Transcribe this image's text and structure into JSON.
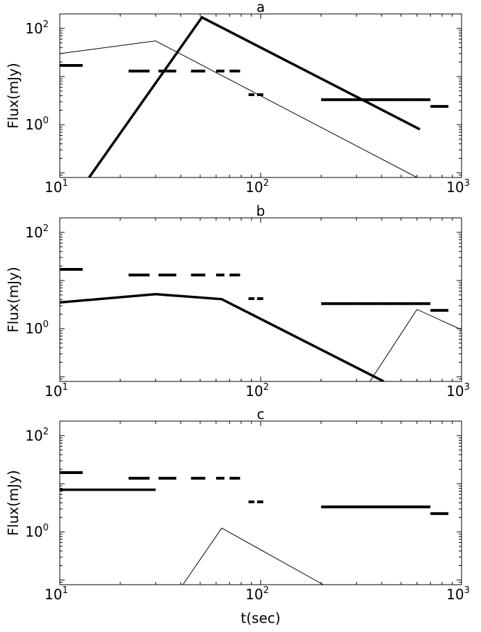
{
  "chart_data": [
    {
      "type": "line",
      "title": "a",
      "xlabel": "",
      "ylabel": "Flux(mJy)",
      "xscale": "log",
      "yscale": "log",
      "xlim": [
        10,
        1000
      ],
      "ylim": [
        0.08,
        200
      ],
      "xticks": [
        {
          "base": "10",
          "exp": "1",
          "value": 10
        },
        {
          "base": "10",
          "exp": "2",
          "value": 100
        },
        {
          "base": "10",
          "exp": "3",
          "value": 1000
        }
      ],
      "yticks": [
        {
          "base": "10",
          "exp": "0",
          "value": 1
        },
        {
          "base": "10",
          "exp": "2",
          "value": 100
        }
      ],
      "grid": false,
      "observations": [
        {
          "x": [
            10,
            13
          ],
          "y": 17
        },
        {
          "x": [
            22,
            28
          ],
          "y": 13
        },
        {
          "x": [
            31,
            38
          ],
          "y": 13
        },
        {
          "x": [
            45,
            53
          ],
          "y": 13
        },
        {
          "x": [
            60,
            66
          ],
          "y": 13
        },
        {
          "x": [
            70,
            79
          ],
          "y": 13
        },
        {
          "x": [
            87,
            93
          ],
          "y": 4.2
        },
        {
          "x": [
            96,
            103
          ],
          "y": 4.2
        },
        {
          "x": [
            200,
            300
          ],
          "y": 3.3
        },
        {
          "x": [
            300,
            395
          ],
          "y": 3.3
        },
        {
          "x": [
            395,
            480
          ],
          "y": 3.3
        },
        {
          "x": [
            480,
            580
          ],
          "y": 3.3
        },
        {
          "x": [
            580,
            700
          ],
          "y": 3.3
        },
        {
          "x": [
            700,
            860
          ],
          "y": 2.4
        }
      ],
      "series": [
        {
          "line": "thin",
          "x": [
            10,
            30,
            600
          ],
          "y": [
            30,
            55,
            0.08
          ]
        },
        {
          "line": "thick",
          "x": [
            14,
            51,
            620
          ],
          "y": [
            0.08,
            170,
            0.8
          ]
        }
      ]
    },
    {
      "type": "line",
      "title": "b",
      "xlabel": "",
      "ylabel": "Flux(mJy)",
      "xscale": "log",
      "yscale": "log",
      "xlim": [
        10,
        1000
      ],
      "ylim": [
        0.08,
        200
      ],
      "xticks": [
        {
          "base": "10",
          "exp": "1",
          "value": 10
        },
        {
          "base": "10",
          "exp": "2",
          "value": 100
        },
        {
          "base": "10",
          "exp": "3",
          "value": 1000
        }
      ],
      "yticks": [
        {
          "base": "10",
          "exp": "0",
          "value": 1
        },
        {
          "base": "10",
          "exp": "2",
          "value": 100
        }
      ],
      "grid": false,
      "observations": [
        {
          "x": [
            10,
            13
          ],
          "y": 17
        },
        {
          "x": [
            22,
            28
          ],
          "y": 13
        },
        {
          "x": [
            31,
            38
          ],
          "y": 13
        },
        {
          "x": [
            45,
            53
          ],
          "y": 13
        },
        {
          "x": [
            60,
            66
          ],
          "y": 13
        },
        {
          "x": [
            70,
            79
          ],
          "y": 13
        },
        {
          "x": [
            87,
            93
          ],
          "y": 4.2
        },
        {
          "x": [
            96,
            103
          ],
          "y": 4.2
        },
        {
          "x": [
            200,
            300
          ],
          "y": 3.3
        },
        {
          "x": [
            300,
            395
          ],
          "y": 3.3
        },
        {
          "x": [
            395,
            480
          ],
          "y": 3.3
        },
        {
          "x": [
            480,
            580
          ],
          "y": 3.3
        },
        {
          "x": [
            580,
            700
          ],
          "y": 3.3
        },
        {
          "x": [
            700,
            860
          ],
          "y": 2.4
        }
      ],
      "series": [
        {
          "line": "thick",
          "x": [
            10,
            30,
            64,
            410
          ],
          "y": [
            3.5,
            5.2,
            4.1,
            0.08
          ]
        },
        {
          "line": "thin",
          "x": [
            350,
            600,
            1000
          ],
          "y": [
            0.08,
            2.5,
            0.95
          ]
        }
      ]
    },
    {
      "type": "line",
      "title": "c",
      "xlabel": "t(sec)",
      "ylabel": "Flux(mJy)",
      "xscale": "log",
      "yscale": "log",
      "xlim": [
        10,
        1000
      ],
      "ylim": [
        0.08,
        200
      ],
      "xticks": [
        {
          "base": "10",
          "exp": "1",
          "value": 10
        },
        {
          "base": "10",
          "exp": "2",
          "value": 100
        },
        {
          "base": "10",
          "exp": "3",
          "value": 1000
        }
      ],
      "yticks": [
        {
          "base": "10",
          "exp": "0",
          "value": 1
        },
        {
          "base": "10",
          "exp": "2",
          "value": 100
        }
      ],
      "grid": false,
      "observations": [
        {
          "x": [
            10,
            13
          ],
          "y": 17
        },
        {
          "x": [
            22,
            28
          ],
          "y": 13
        },
        {
          "x": [
            31,
            38
          ],
          "y": 13
        },
        {
          "x": [
            45,
            53
          ],
          "y": 13
        },
        {
          "x": [
            60,
            66
          ],
          "y": 13
        },
        {
          "x": [
            70,
            79
          ],
          "y": 13
        },
        {
          "x": [
            87,
            93
          ],
          "y": 4.2
        },
        {
          "x": [
            96,
            103
          ],
          "y": 4.2
        },
        {
          "x": [
            200,
            300
          ],
          "y": 3.3
        },
        {
          "x": [
            300,
            395
          ],
          "y": 3.3
        },
        {
          "x": [
            395,
            480
          ],
          "y": 3.3
        },
        {
          "x": [
            480,
            580
          ],
          "y": 3.3
        },
        {
          "x": [
            580,
            700
          ],
          "y": 3.3
        },
        {
          "x": [
            700,
            860
          ],
          "y": 2.4
        }
      ],
      "series": [
        {
          "line": "thick",
          "x": [
            10,
            30
          ],
          "y": [
            7.5,
            7.5
          ]
        },
        {
          "line": "thin",
          "x": [
            41,
            64,
            205
          ],
          "y": [
            0.08,
            1.2,
            0.08
          ]
        }
      ]
    }
  ]
}
